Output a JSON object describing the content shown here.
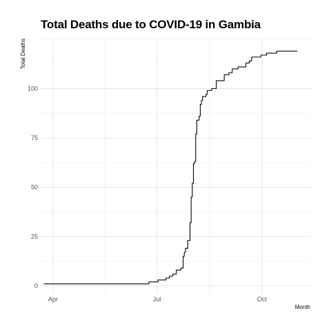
{
  "chart_data": {
    "type": "line",
    "title": "Total Deaths due to COVID-19 in Gambia",
    "xlabel": "Month",
    "ylabel": "Total Deaths",
    "x_ticks": [
      "Apr",
      "Jul",
      "Oct"
    ],
    "y_ticks": [
      0,
      25,
      50,
      75,
      100
    ],
    "ylim": [
      -4,
      125
    ],
    "xlim": [
      "2020-03-20",
      "2020-11-13"
    ],
    "grid": true,
    "legend": "none",
    "line_color": "#000000",
    "series": [
      {
        "x": [
          "2020-03-24",
          "2020-04-20",
          "2020-05-20",
          "2020-06-23",
          "2020-06-24",
          "2020-07-01",
          "2020-07-02",
          "2020-07-08",
          "2020-07-09",
          "2020-07-11",
          "2020-07-12",
          "2020-07-14",
          "2020-07-15",
          "2020-07-17",
          "2020-07-18",
          "2020-07-20",
          "2020-07-22",
          "2020-07-23",
          "2020-07-24",
          "2020-07-25",
          "2020-07-26",
          "2020-07-27",
          "2020-07-28",
          "2020-07-29",
          "2020-07-30",
          "2020-07-31",
          "2020-08-01",
          "2020-08-02",
          "2020-08-03",
          "2020-08-04",
          "2020-08-05",
          "2020-08-06",
          "2020-08-07",
          "2020-08-08",
          "2020-08-09",
          "2020-08-10",
          "2020-08-12",
          "2020-08-13",
          "2020-08-14",
          "2020-08-17",
          "2020-08-18",
          "2020-08-21",
          "2020-08-22",
          "2020-08-28",
          "2020-08-29",
          "2020-09-01",
          "2020-09-02",
          "2020-09-04",
          "2020-09-05",
          "2020-09-09",
          "2020-09-10",
          "2020-09-16",
          "2020-09-17",
          "2020-09-20",
          "2020-09-22",
          "2020-09-25",
          "2020-09-30",
          "2020-10-01",
          "2020-10-04",
          "2020-10-05",
          "2020-10-13",
          "2020-10-14",
          "2020-10-25",
          "2020-10-26",
          "2020-11-01"
        ],
        "y": [
          1,
          1,
          1,
          1,
          2,
          2,
          3,
          3,
          4,
          4,
          5,
          5,
          6,
          6,
          8,
          8,
          9,
          9,
          15,
          17,
          19,
          19,
          23,
          23,
          32,
          45,
          52,
          62,
          63,
          77,
          84,
          84,
          86,
          92,
          94,
          96,
          96,
          97,
          99,
          99,
          100,
          100,
          104,
          104,
          107,
          107,
          108,
          108,
          110,
          110,
          111,
          111,
          113,
          114,
          116,
          116,
          117,
          117,
          117,
          118,
          118,
          119,
          119,
          119,
          119
        ]
      }
    ]
  }
}
